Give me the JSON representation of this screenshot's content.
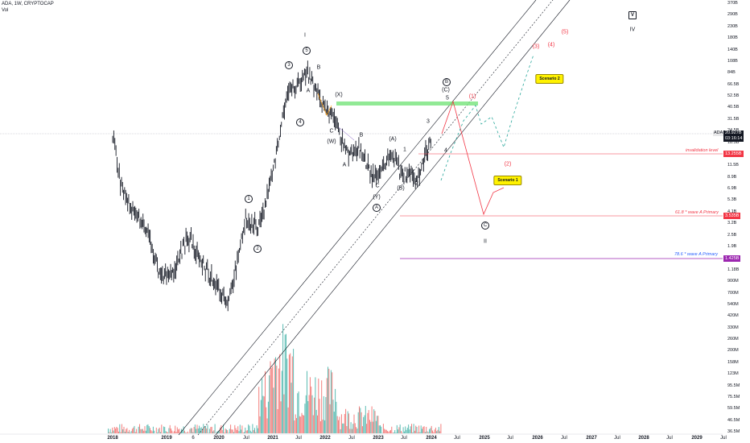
{
  "header": {
    "symbol_line": "ADA, 1W, CRYPTOCAP",
    "vol_label": "Vol"
  },
  "current_price": {
    "symbol": "ADA",
    "value": "20.927B",
    "countdown": "03:16:14"
  },
  "price_axis": [
    "370B",
    "290B",
    "230B",
    "180B",
    "140B",
    "108B",
    "84B",
    "66.5B",
    "52.5B",
    "40.5B",
    "31.5B",
    "24.5B",
    "18.5B",
    "14.5B",
    "11.5B",
    "8.9B",
    "6.9B",
    "5.3B",
    "4.1B",
    "3.2B",
    "2.5B",
    "1.9B",
    "1.5B",
    "1.18B",
    "900M",
    "700M",
    "540M",
    "420M",
    "330M",
    "260M",
    "200M",
    "158M",
    "123M",
    "95.5M",
    "75.5M",
    "59.5M",
    "46.5M",
    "36.5M"
  ],
  "time_axis": [
    {
      "label": "2018",
      "bold": true
    },
    {
      "label": "2019",
      "bold": true
    },
    {
      "label": "6",
      "bold": false
    },
    {
      "label": "2020",
      "bold": true
    },
    {
      "label": "Jul",
      "bold": false
    },
    {
      "label": "2021",
      "bold": true
    },
    {
      "label": "Jul",
      "bold": false
    },
    {
      "label": "2022",
      "bold": true
    },
    {
      "label": "Jul",
      "bold": false
    },
    {
      "label": "2023",
      "bold": true
    },
    {
      "label": "Jul",
      "bold": false
    },
    {
      "label": "2024",
      "bold": true
    },
    {
      "label": "Jul",
      "bold": false
    },
    {
      "label": "2025",
      "bold": true
    },
    {
      "label": "Jul",
      "bold": false
    },
    {
      "label": "2026",
      "bold": true
    },
    {
      "label": "Jul",
      "bold": false
    },
    {
      "label": "2027",
      "bold": true
    },
    {
      "label": "Jul",
      "bold": false
    },
    {
      "label": "2028",
      "bold": true
    },
    {
      "label": "Jul",
      "bold": false
    },
    {
      "label": "2029",
      "bold": true
    },
    {
      "label": "Jul",
      "bold": false
    }
  ],
  "levels": {
    "invalidation": {
      "text": "invalidation level",
      "tag": "13.255B",
      "color": "#f23645"
    },
    "fib618": {
      "text": "61.8 * wave A Primary",
      "tag": "3.535B",
      "color": "#f23645"
    },
    "fib786": {
      "text": "78.6 * wave A Primary",
      "tag": "1.425B",
      "color": "#9c27b0",
      "text_color": "#2962ff"
    }
  },
  "notes": {
    "scenario1": "Scenario 1",
    "scenario2": "Scenario 2"
  },
  "wave_labels": {
    "I": "I",
    "II": "II",
    "IV": "IV",
    "V": "V",
    "c1": "1",
    "c2": "2",
    "c3": "3",
    "c4": "4",
    "c5": "5",
    "A_mid": "A",
    "B_mid": "B",
    "C_mid": "C",
    "X": "(X)",
    "W": "(W)",
    "A_low": "A",
    "B_low": "B",
    "C_low": "C",
    "Y": "(Y)",
    "cA": "A",
    "cB": "B",
    "cC": "C",
    "a_paren": "(A)",
    "b_paren": "(B)",
    "c_paren": "(C)",
    "i1": "1",
    "i2": "2",
    "i3": "3",
    "i4": "4",
    "i5": "5",
    "p1": "(1)",
    "p2": "(2)",
    "p3": "(3)",
    "p4": "(4)",
    "p5": "(5)"
  },
  "colors": {
    "up": "#26a69a",
    "down": "#ef5350",
    "bar": "#131722",
    "green_zone": "#76e37a",
    "teal_dash": "#26a69a"
  },
  "chart_data": {
    "type": "candlestick",
    "symbol": "ADA",
    "timeframe": "1W",
    "source": "CRYPTOCAP",
    "y_scale": "log",
    "ylim": [
      "36.5M",
      "370B"
    ],
    "x_range": [
      "2018",
      "2029"
    ],
    "series": [
      {
        "name": "ADA",
        "points": [
          [
            "2018-01",
            22000000000.0
          ],
          [
            "2018-03",
            6900000000.0
          ],
          [
            "2018-06",
            4100000000.0
          ],
          [
            "2018-09",
            2500000000.0
          ],
          [
            "2018-12",
            1000000000.0
          ],
          [
            "2019-03",
            1200000000.0
          ],
          [
            "2019-06",
            2500000000.0
          ],
          [
            "2019-09",
            1400000000.0
          ],
          [
            "2019-12",
            900000000.0
          ],
          [
            "2020-03",
            550000000.0
          ],
          [
            "2020-07",
            3500000000.0
          ],
          [
            "2020-10",
            3000000000.0
          ],
          [
            "2021-01",
            9000000000.0
          ],
          [
            "2021-04",
            45000000000.0
          ],
          [
            "2021-09",
            85000000000.0
          ],
          [
            "2021-12",
            45000000000.0
          ],
          [
            "2022-03",
            30000000000.0
          ],
          [
            "2022-06",
            15000000000.0
          ],
          [
            "2022-09",
            15000000000.0
          ],
          [
            "2022-12",
            8500000000.0
          ],
          [
            "2023-04",
            15000000000.0
          ],
          [
            "2023-06",
            9500000000.0
          ],
          [
            "2023-10",
            9000000000.0
          ],
          [
            "2024-01",
            20900000000.0
          ]
        ]
      }
    ],
    "last_value": "20.927B",
    "annotations": {
      "invalidation_level": "13.255B",
      "fib_61_8": "3.535B",
      "fib_78_6": "1.425B"
    }
  }
}
